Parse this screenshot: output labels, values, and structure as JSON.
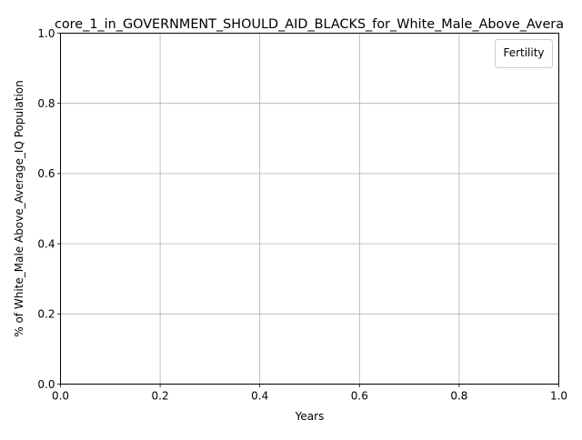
{
  "chart_data": {
    "type": "line",
    "title": "core_1_in_GOVERNMENT_SHOULD_AID_BLACKS_for_White_Male_Above_Avera",
    "xlabel": "Years",
    "ylabel": "% of White_Male Above_Average_IQ Population",
    "xlim": [
      0.0,
      1.0
    ],
    "ylim": [
      0.0,
      1.0
    ],
    "x_ticks": [
      "0.0",
      "0.2",
      "0.4",
      "0.6",
      "0.8",
      "1.0"
    ],
    "y_ticks": [
      "0.0",
      "0.2",
      "0.4",
      "0.6",
      "0.8",
      "1.0"
    ],
    "grid": true,
    "legend": {
      "title": "Fertility",
      "placement": "top-right",
      "entries": []
    },
    "series": []
  },
  "colors": {
    "grid": "#b0b0b0",
    "axes": "#000000",
    "background": "#ffffff",
    "legend_border": "#cccccc"
  }
}
